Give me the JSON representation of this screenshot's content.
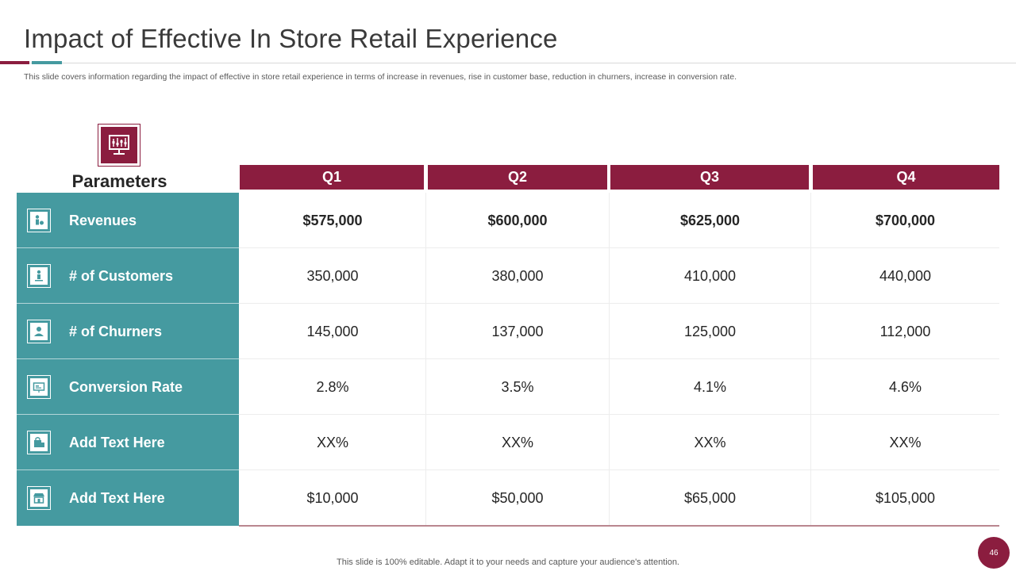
{
  "title": "Impact of Effective In Store Retail Experience",
  "subtitle": "This slide covers information regarding the impact of effective  in store retail experience in terms of increase in revenues, rise in customer base, reduction in churners, increase in conversion rate.",
  "table": {
    "param_header": "Parameters",
    "param_icon": "monitor-chart-icon",
    "quarters": [
      "Q1",
      "Q2",
      "Q3",
      "Q4"
    ],
    "rows": [
      {
        "label": "Revenues",
        "icon": "person-money-icon",
        "values": [
          "$575,000",
          "$600,000",
          "$625,000",
          "$700,000"
        ]
      },
      {
        "label": "# of Customers",
        "icon": "person-stand-icon",
        "values": [
          "350,000",
          "380,000",
          "410,000",
          "440,000"
        ]
      },
      {
        "label": "# of Churners",
        "icon": "user-icon",
        "values": [
          "145,000",
          "137,000",
          "125,000",
          "112,000"
        ]
      },
      {
        "label": "Conversion Rate",
        "icon": "presentation-icon",
        "values": [
          "2.8%",
          "3.5%",
          "4.1%",
          "4.6%"
        ]
      },
      {
        "label": "Add Text Here",
        "icon": "shopping-bag-icon",
        "values": [
          "XX%",
          "XX%",
          "XX%",
          "XX%"
        ]
      },
      {
        "label": "Add Text Here",
        "icon": "store-icon",
        "values": [
          "$10,000",
          "$50,000",
          "$65,000",
          "$105,000"
        ]
      }
    ]
  },
  "footer": "This slide is 100% editable. Adapt it to your needs and capture your audience's attention.",
  "page_number": "46",
  "colors": {
    "primary": "#8b1d3f",
    "accent": "#459aa0"
  }
}
